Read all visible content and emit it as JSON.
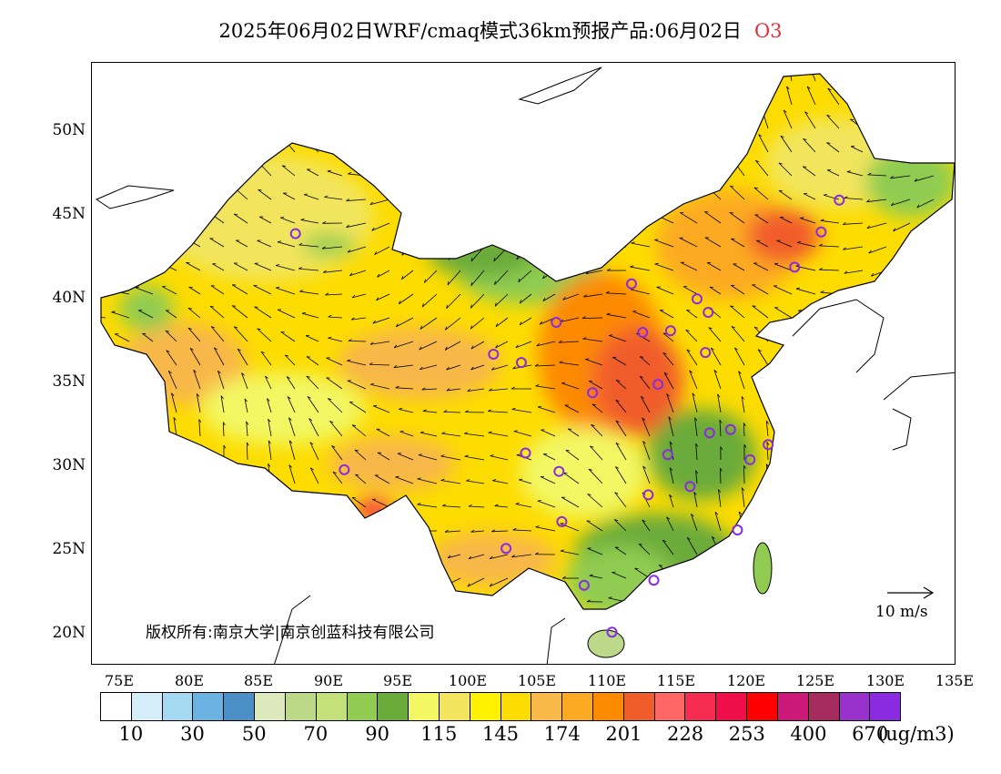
{
  "title": {
    "text": "2025年06月02日WRF/cmaq模式36km预报产品:06月02日",
    "pollutant": "O3",
    "pollutant_color": "#e0323c"
  },
  "map": {
    "lat_labels": [
      "50N",
      "45N",
      "40N",
      "35N",
      "30N",
      "25N",
      "20N"
    ],
    "lon_labels": [
      "75E",
      "80E",
      "85E",
      "90E",
      "95E",
      "100E",
      "105E",
      "110E",
      "115E",
      "120E",
      "125E",
      "130E",
      "135E"
    ],
    "copyright": "版权所有:南京大学|南京创蓝科技有限公司",
    "wind_scale_label": "10 m/s",
    "extent": {
      "lon": [
        73,
        135
      ],
      "lat": [
        18,
        54
      ]
    }
  },
  "colorbar": {
    "colors": [
      "#ffffff",
      "#d6eefa",
      "#a5d8f3",
      "#6cb2e0",
      "#4a8fc6",
      "#dde9bc",
      "#bcd98a",
      "#c4e079",
      "#8fcc51",
      "#6aab3a",
      "#f2f763",
      "#f2e55d",
      "#fff200",
      "#fddc00",
      "#f8b84a",
      "#fcaa24",
      "#fd8a00",
      "#f15d2a",
      "#ff6666",
      "#f52c50",
      "#ef0e4a",
      "#ff0000",
      "#cc1878",
      "#a62c5e",
      "#9932cc",
      "#8a2be2"
    ],
    "labels": [
      "10",
      "30",
      "50",
      "70",
      "90",
      "115",
      "145",
      "174",
      "201",
      "228",
      "253",
      "400",
      "670"
    ],
    "unit": "(ug/m3)"
  },
  "stations": [
    {
      "lon": 87.6,
      "lat": 43.8
    },
    {
      "lon": 91.1,
      "lat": 29.7
    },
    {
      "lon": 101.8,
      "lat": 36.6
    },
    {
      "lon": 103.8,
      "lat": 36.1
    },
    {
      "lon": 106.3,
      "lat": 38.5
    },
    {
      "lon": 104.1,
      "lat": 30.7
    },
    {
      "lon": 106.5,
      "lat": 29.6
    },
    {
      "lon": 106.7,
      "lat": 26.6
    },
    {
      "lon": 102.7,
      "lat": 25.0
    },
    {
      "lon": 108.9,
      "lat": 34.3
    },
    {
      "lon": 111.7,
      "lat": 40.8
    },
    {
      "lon": 112.5,
      "lat": 37.9
    },
    {
      "lon": 114.5,
      "lat": 38.0
    },
    {
      "lon": 116.4,
      "lat": 39.9
    },
    {
      "lon": 117.2,
      "lat": 39.1
    },
    {
      "lon": 113.6,
      "lat": 34.8
    },
    {
      "lon": 117.0,
      "lat": 36.7
    },
    {
      "lon": 114.3,
      "lat": 30.6
    },
    {
      "lon": 112.9,
      "lat": 28.2
    },
    {
      "lon": 115.9,
      "lat": 28.7
    },
    {
      "lon": 117.3,
      "lat": 31.9
    },
    {
      "lon": 118.8,
      "lat": 32.1
    },
    {
      "lon": 121.5,
      "lat": 31.2
    },
    {
      "lon": 120.2,
      "lat": 30.3
    },
    {
      "lon": 119.3,
      "lat": 26.1
    },
    {
      "lon": 113.3,
      "lat": 23.1
    },
    {
      "lon": 108.3,
      "lat": 22.8
    },
    {
      "lon": 110.3,
      "lat": 20.0
    },
    {
      "lon": 123.4,
      "lat": 41.8
    },
    {
      "lon": 125.3,
      "lat": 43.9
    },
    {
      "lon": 126.6,
      "lat": 45.8
    }
  ]
}
